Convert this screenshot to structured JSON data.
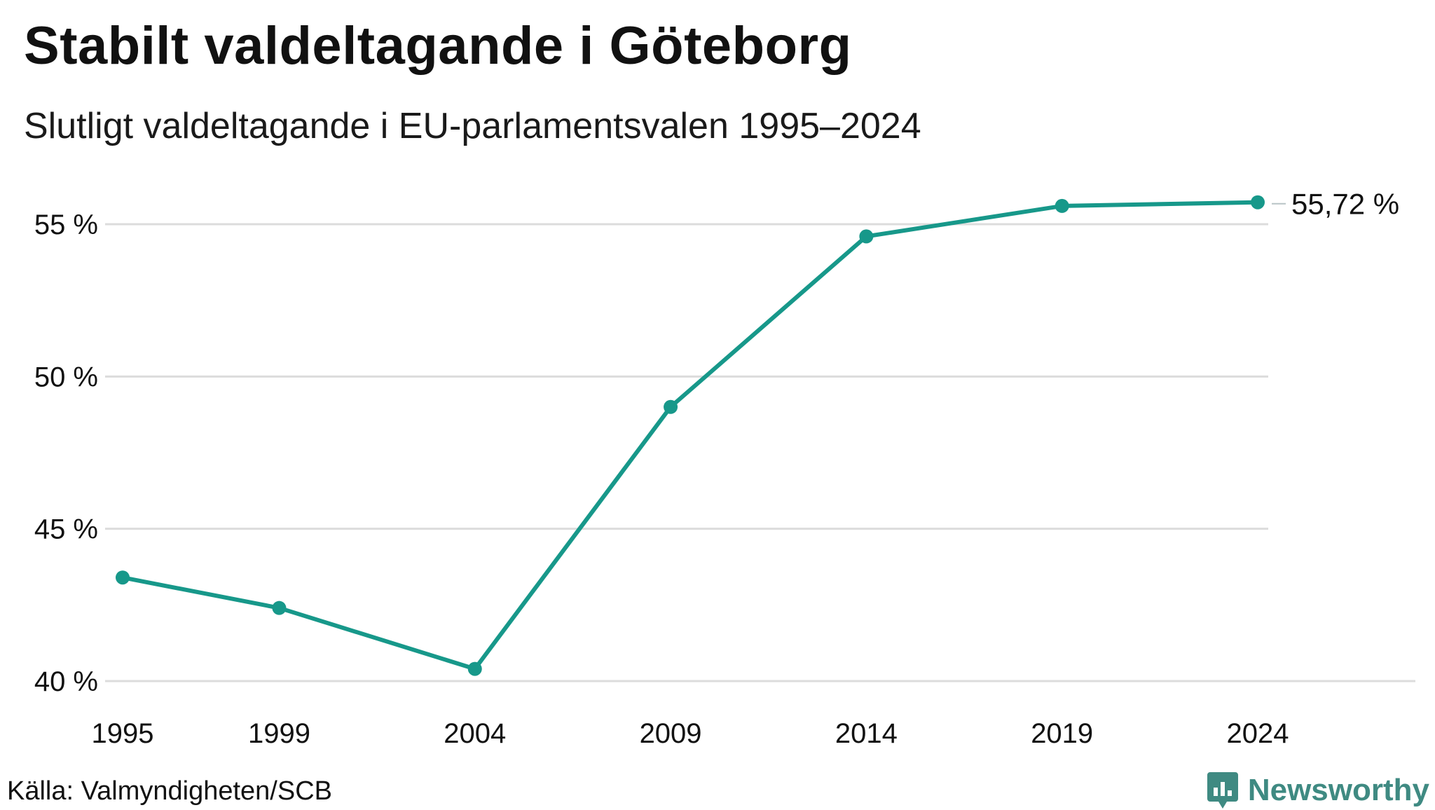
{
  "header": {
    "title": "Stabilt valdeltagande i Göteborg",
    "subtitle": "Slutligt valdeltagande i EU-parlamentsvalen 1995–2024"
  },
  "footer": {
    "source": "Källa: Valmyndigheten/SCB",
    "brand": "Newsworthy",
    "brand_icon": "bar-chart-badge-icon"
  },
  "colors": {
    "series": "#17988a",
    "grid": "#dcdcdc",
    "brand": "#3f8a82"
  },
  "chart_data": {
    "type": "line",
    "x": [
      "1995",
      "1999",
      "2004",
      "2009",
      "2014",
      "2019",
      "2024"
    ],
    "x_numeric": [
      1995,
      1999,
      2004,
      2009,
      2014,
      2019,
      2024
    ],
    "series": [
      {
        "values": [
          43.4,
          42.4,
          40.4,
          49.0,
          54.6,
          55.6,
          55.72
        ]
      }
    ],
    "ylim": [
      40,
      55
    ],
    "yticks": [
      40,
      45,
      50,
      55
    ],
    "ytick_labels": [
      "40 %",
      "45 %",
      "50 %",
      "55 %"
    ],
    "xtick_labels": [
      "1995",
      "1999",
      "2004",
      "2009",
      "2014",
      "2019",
      "2024"
    ],
    "end_label": "55,72 %",
    "grid": true,
    "markers": true
  }
}
